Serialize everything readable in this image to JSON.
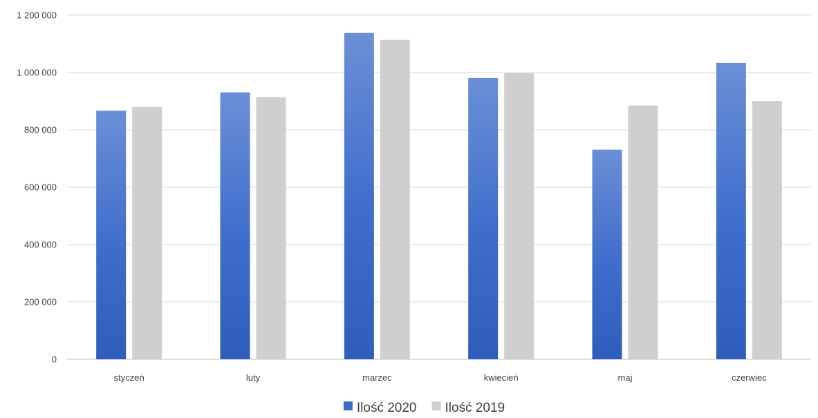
{
  "chart_data": {
    "type": "bar",
    "categories": [
      "styczeń",
      "luty",
      "marzec",
      "kwiecień",
      "maj",
      "czerwiec"
    ],
    "series": [
      {
        "name": "Ilość 2020",
        "color": "#3d6cc9",
        "values": [
          867000,
          931000,
          1138000,
          981000,
          731000,
          1034000
        ]
      },
      {
        "name": "Ilość 2019",
        "color": "#d0cece",
        "values": [
          880000,
          914000,
          1114000,
          998000,
          885000,
          901000
        ]
      }
    ],
    "ylim": [
      0,
      1200000
    ],
    "yticks": [
      0,
      200000,
      400000,
      600000,
      800000,
      1000000,
      1200000
    ],
    "ytick_labels": [
      "0",
      "200 000",
      "400 000",
      "600 000",
      "800 000",
      "1 000 000",
      "1 200 000"
    ],
    "grid": true,
    "legend_position": "bottom"
  }
}
